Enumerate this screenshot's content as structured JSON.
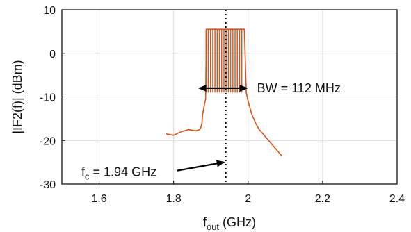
{
  "chart_data": {
    "type": "line",
    "title": "",
    "xlabel_main": "f",
    "xlabel_sub": "out",
    "xlabel_unit": " (GHz)",
    "ylabel": "|IF2(f)| (dBm)",
    "xlim": [
      1.5,
      2.4
    ],
    "ylim": [
      -30,
      10
    ],
    "xticks": [
      1.6,
      1.8,
      2.0,
      2.2,
      2.4
    ],
    "xtick_labels": [
      "1.6",
      "1.8",
      "2",
      "2.2",
      "2.4"
    ],
    "yticks": [
      -30,
      -20,
      -10,
      0,
      10
    ],
    "ytick_labels": [
      "-30",
      "-20",
      "-10",
      "0",
      "10"
    ],
    "grid": true,
    "legend": "none",
    "series": [
      {
        "color": "#d95319",
        "x": [
          1.78,
          1.8,
          1.82,
          1.84,
          1.86,
          1.87,
          1.873,
          1.876,
          1.878,
          1.882,
          1.886,
          1.888,
          1.9,
          1.91,
          1.92,
          1.93,
          1.94,
          1.95,
          1.96,
          1.97,
          1.975,
          1.98,
          1.985,
          1.99,
          1.995,
          2.0,
          2.01,
          2.02,
          2.03,
          2.04,
          2.05,
          2.06,
          2.07,
          2.08,
          2.09
        ],
        "y": [
          -18.5,
          -18.8,
          -18.0,
          -17.5,
          -17.8,
          -17.5,
          -17.0,
          -16.0,
          -14.0,
          -12.0,
          -10.5,
          5.5,
          5.5,
          5.5,
          5.5,
          5.5,
          5.5,
          5.5,
          5.5,
          5.5,
          5.5,
          5.5,
          5.5,
          5.5,
          -9.0,
          -11.0,
          -14.0,
          -16.0,
          -17.5,
          -18.5,
          -19.5,
          -20.5,
          -21.5,
          -22.5,
          -23.5
        ]
      }
    ],
    "annotations": {
      "bw_text": "BW = 112 MHz",
      "fc_main": "f",
      "fc_sub": "c",
      "fc_text": " = 1.94 GHz",
      "fc_value": 1.94,
      "bw_start": 1.884,
      "bw_end": 1.996,
      "bw_level": -8,
      "fc_arrow_tip_y": -25
    }
  }
}
